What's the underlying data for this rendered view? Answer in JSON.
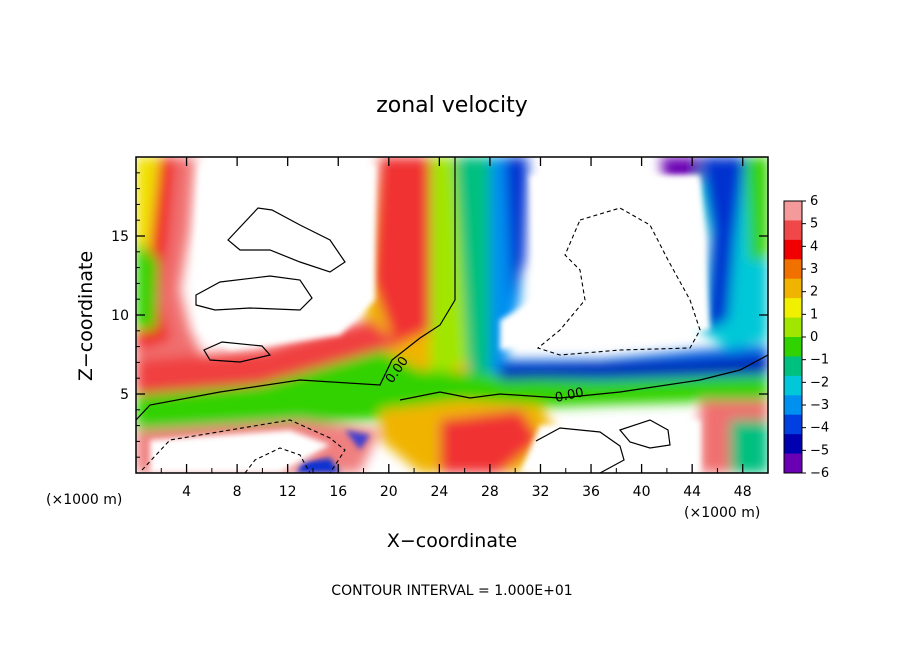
{
  "chart_data": {
    "type": "heatmap",
    "title": "zonal velocity",
    "xlabel": "X−coordinate",
    "ylabel": "Z−coordinate",
    "x_unit": "(×1000 m)",
    "x_range": [
      0,
      50
    ],
    "y_range": [
      0,
      20
    ],
    "x_ticks": [
      4,
      8,
      12,
      16,
      20,
      24,
      28,
      32,
      36,
      40,
      44,
      48
    ],
    "y_ticks": [
      5,
      10,
      15
    ],
    "colorbar": {
      "range": [
        -6,
        6
      ],
      "ticks": [
        6,
        5,
        4,
        3,
        2,
        1,
        0,
        -1,
        -2,
        -3,
        -4,
        -5,
        -6
      ],
      "tick_labels": [
        "6",
        "5",
        "4",
        "3",
        "2",
        "1",
        "0",
        "−1",
        "−2",
        "−3",
        "−4",
        "−5",
        "−6"
      ],
      "colors": [
        "#f49a9a",
        "#f04848",
        "#f00000",
        "#f07000",
        "#f0b400",
        "#f0f000",
        "#a0e600",
        "#30d200",
        "#00c080",
        "#00c8d8",
        "#0090f0",
        "#0040e0",
        "#0000b0",
        "#6a00b4"
      ]
    },
    "contour_labels": [
      "0.00",
      "0.00"
    ],
    "footer": "CONTOUR INTERVAL = 1.000E+01",
    "grid": false
  }
}
